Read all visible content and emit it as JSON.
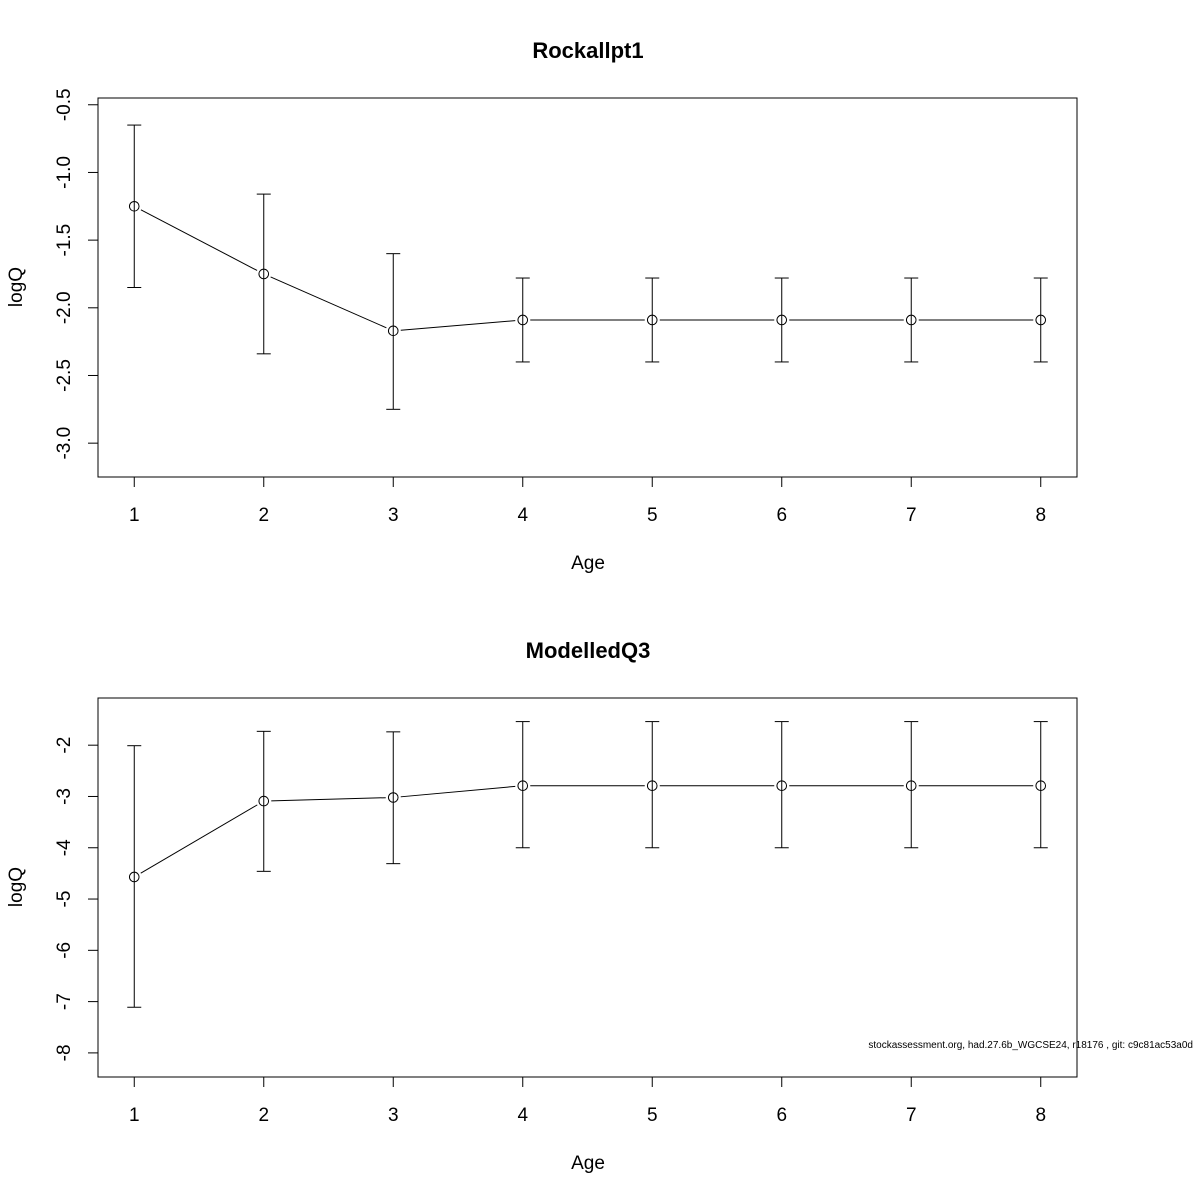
{
  "chart_data": [
    {
      "type": "line",
      "title": "Rockallpt1",
      "xlabel": "Age",
      "ylabel": "logQ",
      "x": [
        1,
        2,
        3,
        4,
        5,
        6,
        7,
        8
      ],
      "xticks": [
        "1",
        "2",
        "3",
        "4",
        "5",
        "6",
        "7",
        "8"
      ],
      "xlim": [
        0.72,
        8.28
      ],
      "ylim": [
        -3.25,
        -0.45
      ],
      "yticks": [
        "-0.5",
        "-1.0",
        "-1.5",
        "-2.0",
        "-2.5",
        "-3.0"
      ],
      "ytick_values": [
        -0.5,
        -1.0,
        -1.5,
        -2.0,
        -2.5,
        -3.0
      ],
      "series": [
        {
          "values": [
            -1.25,
            -1.75,
            -2.17,
            -2.09,
            -2.09,
            -2.09,
            -2.09,
            -2.09
          ],
          "lower": [
            -1.85,
            -2.34,
            -2.75,
            -2.4,
            -2.4,
            -2.4,
            -2.4,
            -2.4
          ],
          "upper": [
            -0.65,
            -1.16,
            -1.6,
            -1.78,
            -1.78,
            -1.78,
            -1.78,
            -1.78
          ]
        }
      ],
      "grid": false,
      "marker": "open-circle"
    },
    {
      "type": "line",
      "title": "ModelledQ3",
      "xlabel": "Age",
      "ylabel": "logQ",
      "x": [
        1,
        2,
        3,
        4,
        5,
        6,
        7,
        8
      ],
      "xticks": [
        "1",
        "2",
        "3",
        "4",
        "5",
        "6",
        "7",
        "8"
      ],
      "xlim": [
        0.72,
        8.28
      ],
      "ylim": [
        -8.47,
        -1.08
      ],
      "yticks": [
        "-2",
        "-3",
        "-4",
        "-5",
        "-6",
        "-7",
        "-8"
      ],
      "ytick_values": [
        -2,
        -3,
        -4,
        -5,
        -6,
        -7,
        -8
      ],
      "series": [
        {
          "values": [
            -4.57,
            -3.09,
            -3.02,
            -2.79,
            -2.79,
            -2.79,
            -2.79,
            -2.79
          ],
          "lower": [
            -7.11,
            -4.46,
            -4.31,
            -4.0,
            -4.0,
            -4.0,
            -4.0,
            -4.0
          ],
          "upper": [
            -2.01,
            -1.73,
            -1.74,
            -1.54,
            -1.54,
            -1.54,
            -1.54,
            -1.54
          ]
        }
      ],
      "grid": false,
      "marker": "open-circle"
    }
  ],
  "footer": {
    "text": "stockassessment.org, had.27.6b_WGCSE24, r18176 , git: c9c81ac53a0d"
  }
}
